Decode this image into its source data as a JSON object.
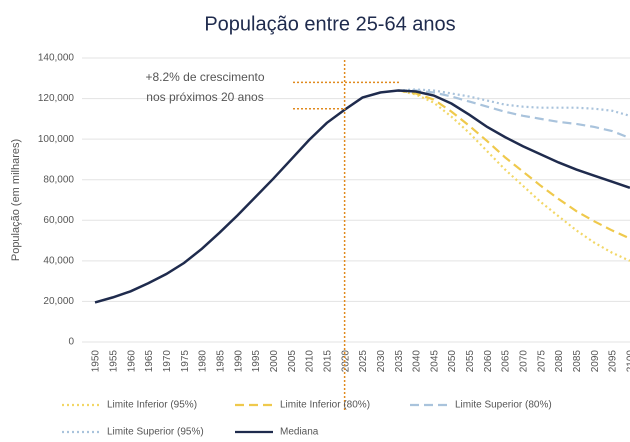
{
  "chart_data": {
    "type": "line",
    "title": "População entre 25-64 anos",
    "y_label": "População (em milhares)",
    "categories": [
      "1950",
      "1955",
      "1960",
      "1965",
      "1970",
      "1975",
      "1980",
      "1985",
      "1990",
      "1995",
      "2000",
      "2005",
      "2010",
      "2015",
      "2020",
      "2025",
      "2030",
      "2035",
      "2040",
      "2045",
      "2050",
      "2055",
      "2060",
      "2065",
      "2070",
      "2075",
      "2080",
      "2085",
      "2090",
      "2095",
      "2100"
    ],
    "ylim": [
      0,
      140000
    ],
    "yticks": [
      0,
      {
        "value": 20000,
        "label": "20,000"
      },
      {
        "value": 40000,
        "label": "40,000"
      },
      {
        "value": 60000,
        "label": "60,000"
      },
      {
        "value": 80000,
        "label": "80,000"
      },
      {
        "value": 100000,
        "label": "100,000"
      },
      {
        "value": 120000,
        "label": "120,000"
      },
      {
        "value": 140000,
        "label": "140,000"
      }
    ],
    "grid": true,
    "legend": "bottom",
    "series": [
      {
        "name": "Limite Inferior (95%)",
        "color": "#f2d766",
        "style": "dotted",
        "values": [
          null,
          null,
          null,
          null,
          null,
          null,
          null,
          null,
          null,
          null,
          null,
          null,
          null,
          null,
          null,
          null,
          null,
          124000,
          122000,
          118000,
          111000,
          103000,
          94000,
          85000,
          77000,
          69000,
          62000,
          55000,
          49000,
          44000,
          40000
        ]
      },
      {
        "name": "Limite Inferior (80%)",
        "color": "#efc94c",
        "style": "dashed",
        "values": [
          null,
          null,
          null,
          null,
          null,
          null,
          null,
          null,
          null,
          null,
          null,
          null,
          null,
          null,
          null,
          null,
          null,
          124000,
          122500,
          119500,
          113500,
          106500,
          99000,
          91000,
          84000,
          77000,
          70500,
          64500,
          59500,
          55000,
          51000
        ]
      },
      {
        "name": "Limite Superior (80%)",
        "color": "#a9c3dc",
        "style": "dashed",
        "values": [
          null,
          null,
          null,
          null,
          null,
          null,
          null,
          null,
          null,
          null,
          null,
          null,
          null,
          null,
          null,
          null,
          null,
          124000,
          124000,
          123000,
          121000,
          118500,
          116000,
          113500,
          111500,
          110000,
          108500,
          107500,
          106000,
          104000,
          100500
        ]
      },
      {
        "name": "Limite Superior (95%)",
        "color": "#a9c3dc",
        "style": "dotted",
        "values": [
          null,
          null,
          null,
          null,
          null,
          null,
          null,
          null,
          null,
          null,
          null,
          null,
          null,
          null,
          null,
          null,
          null,
          124000,
          124500,
          124000,
          122500,
          121000,
          119000,
          117000,
          116000,
          115500,
          115500,
          115500,
          115000,
          114000,
          111500
        ]
      },
      {
        "name": "Mediana",
        "color": "#1f2b4d",
        "style": "solid",
        "values": [
          19500,
          22000,
          25000,
          29000,
          33500,
          39000,
          46000,
          54000,
          62500,
          71500,
          80500,
          90000,
          99500,
          108000,
          114500,
          120500,
          123000,
          124000,
          123500,
          121500,
          117500,
          112000,
          106000,
          101000,
          96500,
          92500,
          88500,
          85000,
          82000,
          79000,
          76000
        ]
      }
    ],
    "annotation": {
      "text": [
        "+8.2% de crescimento",
        "nos próximos 20 anos"
      ],
      "x": "2020",
      "y": [
        115000,
        128000
      ],
      "color": "#e08a1e"
    }
  }
}
